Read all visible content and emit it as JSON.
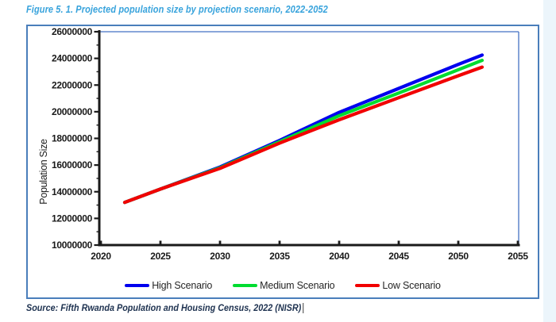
{
  "page": {
    "figure_title": "Figure 5. 1. Projected population size by projection scenario, 2022-2052",
    "source_text": "Source: Fifth Rwanda Population and Housing Census, 2022 (NISR)"
  },
  "colors": {
    "title_blue": "#38a3dc",
    "frame_border": "#4a7ebb",
    "plot_border": "#4472c4",
    "axis_black": "#1a1a1a",
    "legend_text": "#262626",
    "source_navy": "#1e3250"
  },
  "chart_data": {
    "type": "line",
    "title": "",
    "xlabel": "",
    "ylabel": "Population Size",
    "xlim": [
      2020,
      2055
    ],
    "ylim": [
      10000000,
      26000000
    ],
    "x_tick_labels": [
      "2020",
      "2025",
      "2030",
      "2035",
      "2040",
      "2045",
      "2050",
      "2055"
    ],
    "x_tick_values": [
      2020,
      2025,
      2030,
      2035,
      2040,
      2045,
      2050,
      2055
    ],
    "y_tick_labels": [
      "10000000",
      "12000000",
      "14000000",
      "16000000",
      "18000000",
      "20000000",
      "22000000",
      "24000000",
      "26000000"
    ],
    "y_tick_values": [
      10000000,
      12000000,
      14000000,
      16000000,
      18000000,
      20000000,
      22000000,
      24000000,
      26000000
    ],
    "y_minor_step": 1000000,
    "grid": false,
    "legend_position": "bottom",
    "x": [
      2022,
      2025,
      2030,
      2035,
      2040,
      2045,
      2050,
      2052
    ],
    "series": [
      {
        "name": "High Scenario",
        "color": "#0000ee",
        "values": [
          13200000,
          14200000,
          15850000,
          17850000,
          19950000,
          21750000,
          23550000,
          24250000
        ]
      },
      {
        "name": "Medium Scenario",
        "color": "#00dc30",
        "values": [
          13200000,
          14200000,
          15800000,
          17750000,
          19700000,
          21400000,
          23150000,
          23850000
        ]
      },
      {
        "name": "Low Scenario",
        "color": "#f10000",
        "values": [
          13200000,
          14200000,
          15750000,
          17650000,
          19400000,
          21050000,
          22700000,
          23350000
        ]
      }
    ]
  }
}
